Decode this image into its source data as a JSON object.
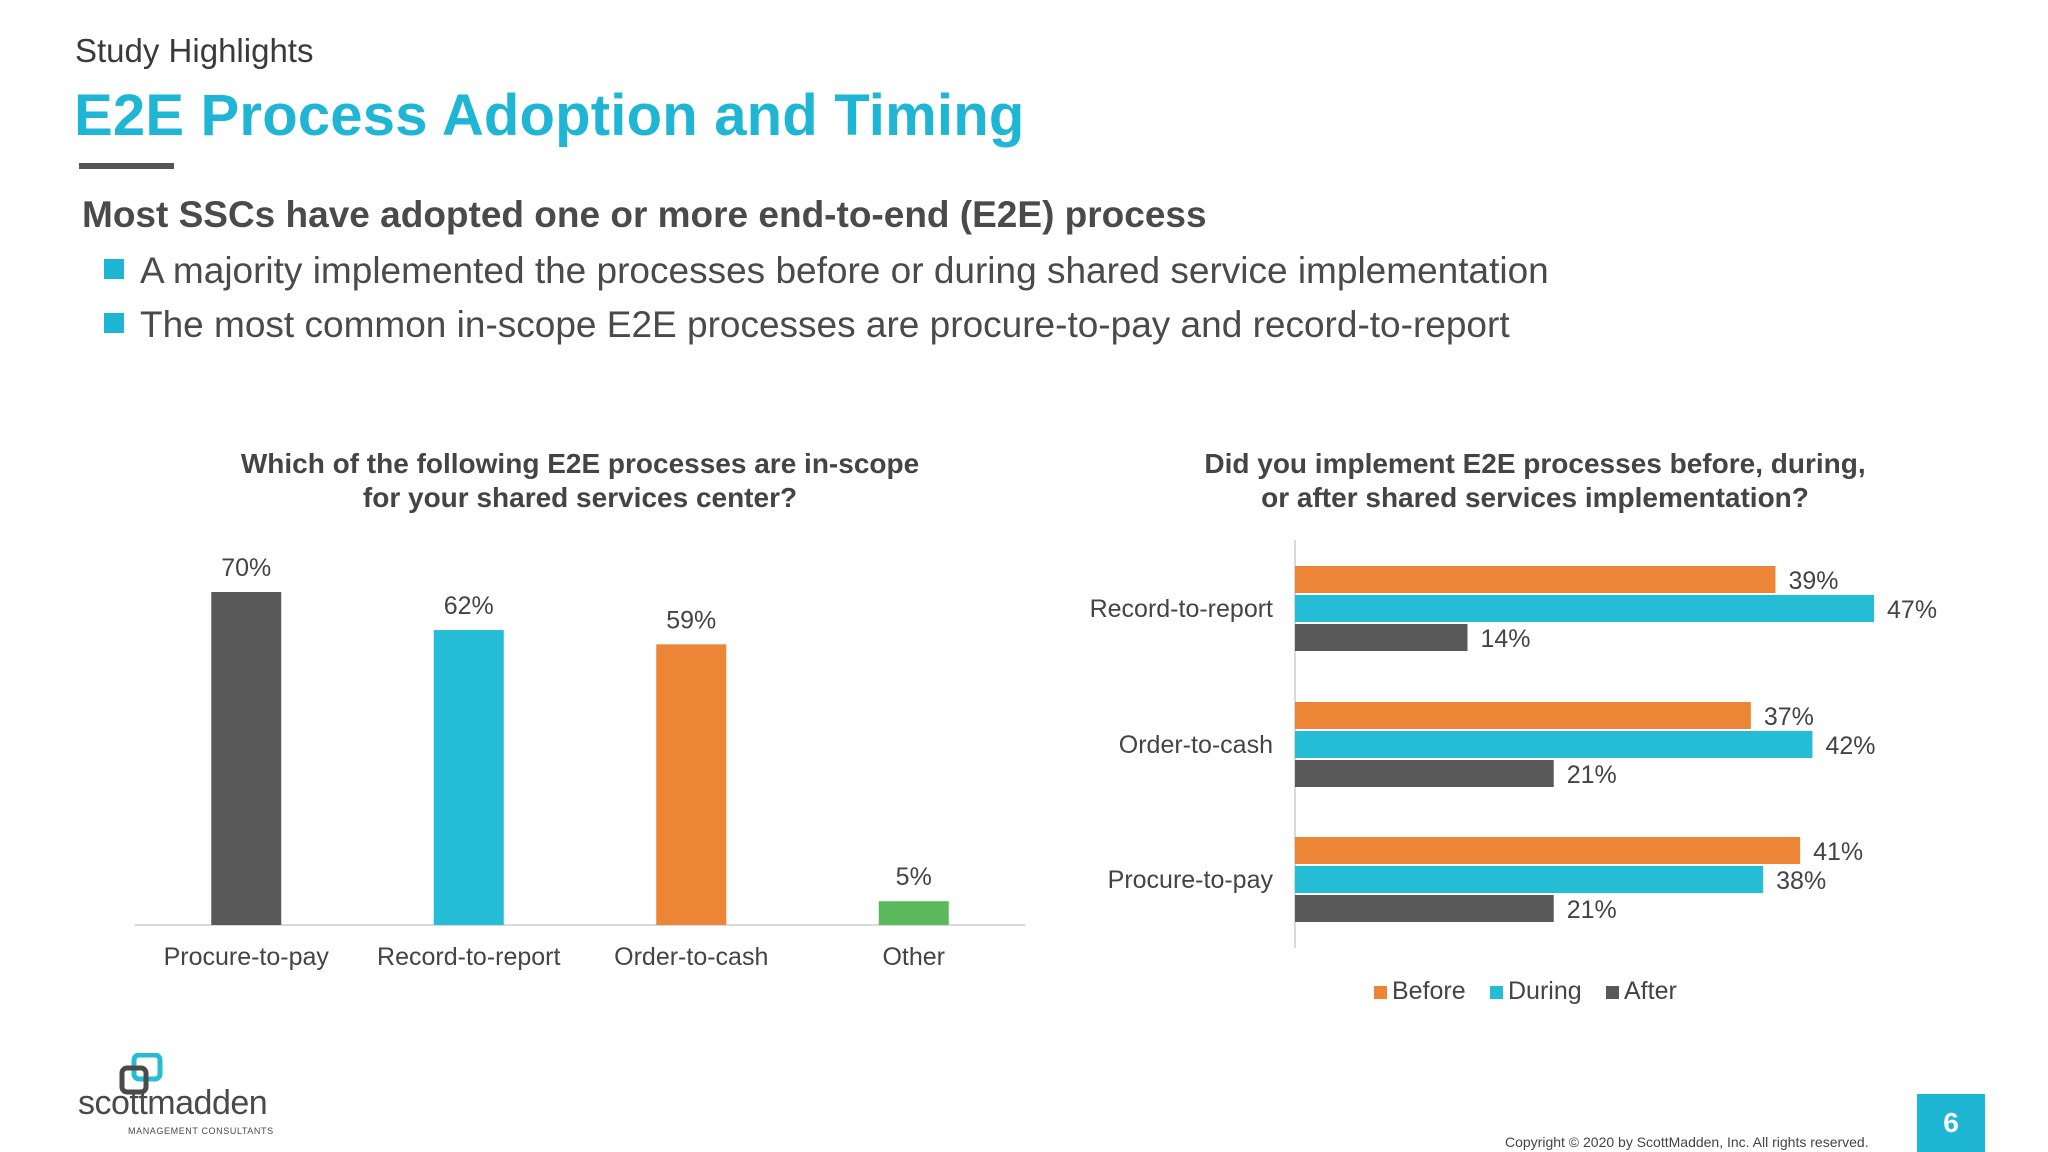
{
  "header": {
    "kicker": "Study Highlights",
    "title": "E2E Process Adoption and Timing"
  },
  "summary": {
    "headline": "Most SSCs have adopted one or more end-to-end (E2E) process",
    "bullets": [
      "A majority implemented the processes before or during shared service implementation",
      "The most common in-scope E2E processes are procure-to-pay and record-to-report"
    ]
  },
  "colors": {
    "accent": "#1fb5d4",
    "before": "#ed8536",
    "during": "#25bcd6",
    "after": "#595959",
    "other": "#5cb85c"
  },
  "chart_data": [
    {
      "type": "bar",
      "title": "Which of the following E2E processes are in-scope\nfor your shared services center?",
      "categories": [
        "Procure-to-pay",
        "Record-to-report",
        "Order-to-cash",
        "Other"
      ],
      "values": [
        70,
        62,
        59,
        5
      ],
      "value_labels": [
        "70%",
        "62%",
        "59%",
        "5%"
      ],
      "bar_colors": [
        "#595959",
        "#25bcd6",
        "#ed8536",
        "#5cb85c"
      ],
      "ylim": [
        0,
        70
      ],
      "grid": false
    },
    {
      "type": "bar",
      "orientation": "horizontal",
      "title": "Did you implement E2E processes before, during,\nor after shared services implementation?",
      "categories": [
        "Record-to-report",
        "Order-to-cash",
        "Procure-to-pay"
      ],
      "series": [
        {
          "name": "Before",
          "values": [
            39,
            37,
            41
          ],
          "color": "#ed8536"
        },
        {
          "name": "During",
          "values": [
            47,
            42,
            38
          ],
          "color": "#25bcd6"
        },
        {
          "name": "After",
          "values": [
            14,
            21,
            21
          ],
          "color": "#595959"
        }
      ],
      "xlim": [
        0,
        50
      ],
      "legend": "bottom",
      "grid": false
    }
  ],
  "footer": {
    "logo_text": "scottmadden",
    "logo_sub": "MANAGEMENT CONSULTANTS",
    "copyright": "Copyright © 2020 by ScottMadden, Inc. All rights reserved.",
    "page_number": "6"
  }
}
